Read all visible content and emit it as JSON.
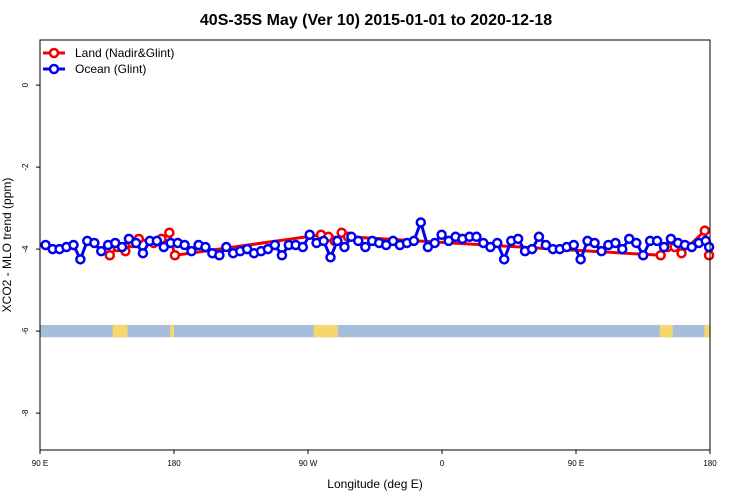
{
  "chart_data": {
    "type": "line",
    "title": "40S-35S May (Ver 10)   2015-01-01 to 2020-12-18",
    "xlabel": "Longitude (deg E)",
    "ylabel": "XCO2 - MLO trend (ppm)",
    "xlim": [
      90,
      450
    ],
    "ylim": [
      -8.9,
      1.1
    ],
    "x_ticks": [
      {
        "value": 90,
        "label": "90 E"
      },
      {
        "value": 162,
        "label": "180"
      },
      {
        "value": 234,
        "label": "90 W"
      },
      {
        "value": 306,
        "label": "0"
      },
      {
        "value": 378,
        "label": "90 E"
      },
      {
        "value": 450,
        "label": "180"
      }
    ],
    "y_ticks": [
      0,
      -2,
      -4,
      -6,
      -8
    ],
    "legend": {
      "position": "top-left"
    },
    "series": [
      {
        "name": "Land (Nadir&Glint)",
        "color": "#ee0000",
        "points": [
          [
            127.5,
            -4.15
          ],
          [
            131.7,
            -3.95
          ],
          [
            135.9,
            -4.05
          ],
          [
            139.5,
            -3.85
          ],
          [
            143.1,
            -3.75
          ],
          [
            151.1,
            -3.85
          ],
          [
            155.3,
            -3.75
          ],
          [
            159.5,
            -3.6
          ],
          [
            162.5,
            -4.15
          ],
          [
            241,
            -3.65
          ],
          [
            245,
            -3.7
          ],
          [
            248.3,
            -3.8
          ],
          [
            252.1,
            -3.6
          ],
          [
            255.5,
            -3.7
          ],
          [
            423.5,
            -4.15
          ],
          [
            427.2,
            -3.95
          ],
          [
            431,
            -3.95
          ],
          [
            434.7,
            -4.1
          ],
          [
            447.2,
            -3.55
          ],
          [
            449.5,
            -4.15
          ]
        ]
      },
      {
        "name": "Ocean (Glint)",
        "color": "#0000ee",
        "points": [
          [
            93,
            -3.9
          ],
          [
            96.8,
            -4.0
          ],
          [
            100.5,
            -4.0
          ],
          [
            104.2,
            -3.95
          ],
          [
            108,
            -3.9
          ],
          [
            111.7,
            -4.25
          ],
          [
            115.4,
            -3.8
          ],
          [
            119.2,
            -3.85
          ],
          [
            122.9,
            -4.05
          ],
          [
            126.6,
            -3.9
          ],
          [
            130.4,
            -3.85
          ],
          [
            134.1,
            -3.95
          ],
          [
            137.8,
            -3.75
          ],
          [
            141.6,
            -3.85
          ],
          [
            145.3,
            -4.1
          ],
          [
            149,
            -3.8
          ],
          [
            152.8,
            -3.8
          ],
          [
            156.5,
            -3.95
          ],
          [
            160.2,
            -3.85
          ],
          [
            164,
            -3.85
          ],
          [
            167.7,
            -3.9
          ],
          [
            171.4,
            -4.05
          ],
          [
            175.2,
            -3.9
          ],
          [
            178.9,
            -3.95
          ],
          [
            182.6,
            -4.1
          ],
          [
            186.4,
            -4.15
          ],
          [
            190.1,
            -3.95
          ],
          [
            193.8,
            -4.1
          ],
          [
            197.6,
            -4.05
          ],
          [
            201.3,
            -4.0
          ],
          [
            205,
            -4.1
          ],
          [
            208.8,
            -4.05
          ],
          [
            212.5,
            -4.0
          ],
          [
            216.2,
            -3.9
          ],
          [
            220,
            -4.15
          ],
          [
            223.7,
            -3.9
          ],
          [
            227.4,
            -3.9
          ],
          [
            231.2,
            -3.95
          ],
          [
            234.9,
            -3.65
          ],
          [
            238.6,
            -3.85
          ],
          [
            242.4,
            -3.8
          ],
          [
            246.1,
            -4.2
          ],
          [
            249.8,
            -3.8
          ],
          [
            253.6,
            -3.95
          ],
          [
            257.3,
            -3.7
          ],
          [
            261,
            -3.8
          ],
          [
            264.8,
            -3.95
          ],
          [
            268.5,
            -3.8
          ],
          [
            272.2,
            -3.85
          ],
          [
            276,
            -3.9
          ],
          [
            279.7,
            -3.8
          ],
          [
            283.4,
            -3.9
          ],
          [
            287.2,
            -3.85
          ],
          [
            290.9,
            -3.8
          ],
          [
            294.6,
            -3.35
          ],
          [
            298.4,
            -3.95
          ],
          [
            302.1,
            -3.85
          ],
          [
            305.8,
            -3.65
          ],
          [
            309.6,
            -3.8
          ],
          [
            313.3,
            -3.7
          ],
          [
            317,
            -3.75
          ],
          [
            320.8,
            -3.7
          ],
          [
            324.5,
            -3.7
          ],
          [
            328.2,
            -3.85
          ],
          [
            332,
            -3.95
          ],
          [
            335.7,
            -3.85
          ],
          [
            339.4,
            -4.25
          ],
          [
            343.2,
            -3.8
          ],
          [
            346.9,
            -3.75
          ],
          [
            350.6,
            -4.05
          ],
          [
            354.4,
            -4.0
          ],
          [
            358.1,
            -3.7
          ],
          [
            361.8,
            -3.9
          ],
          [
            365.6,
            -4.0
          ],
          [
            369.3,
            -4.0
          ],
          [
            373,
            -3.95
          ],
          [
            376.8,
            -3.9
          ],
          [
            380.5,
            -4.25
          ],
          [
            384.2,
            -3.8
          ],
          [
            388,
            -3.85
          ],
          [
            391.7,
            -4.05
          ],
          [
            395.4,
            -3.9
          ],
          [
            399.2,
            -3.85
          ],
          [
            402.9,
            -4.0
          ],
          [
            406.6,
            -3.75
          ],
          [
            410.4,
            -3.85
          ],
          [
            414.1,
            -4.15
          ],
          [
            417.8,
            -3.8
          ],
          [
            421.6,
            -3.8
          ],
          [
            425.3,
            -3.95
          ],
          [
            429,
            -3.75
          ],
          [
            432.8,
            -3.85
          ],
          [
            436.5,
            -3.9
          ],
          [
            440.2,
            -3.95
          ],
          [
            444,
            -3.85
          ],
          [
            447.7,
            -3.8
          ],
          [
            449.5,
            -3.95
          ]
        ]
      }
    ],
    "land_strip": {
      "y_range": [
        -6.15,
        -5.85
      ],
      "ocean_color": "#a6bddb",
      "land_color": "#f5d76e",
      "land_spans": [
        [
          129,
          137
        ],
        [
          160,
          162
        ],
        [
          237,
          250
        ],
        [
          423,
          430
        ],
        [
          447,
          450
        ]
      ]
    }
  }
}
